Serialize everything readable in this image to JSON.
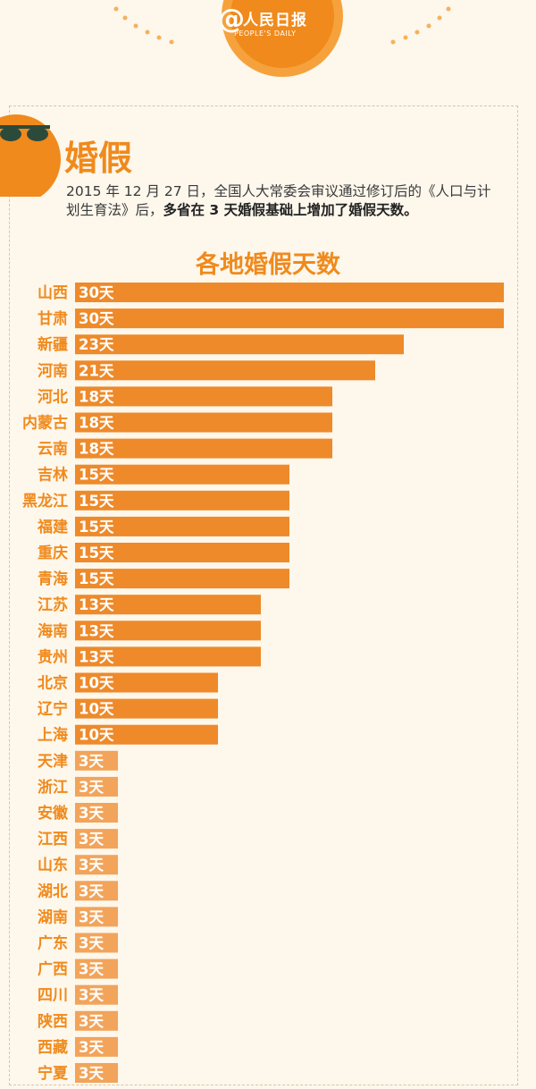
{
  "header": {
    "logo_at": "@",
    "logo_name": "人民日报",
    "logo_sub": "PEOPLE'S DAILY"
  },
  "section": {
    "title": "婚假",
    "intro_normal": "2015 年 12 月 27 日，全国人大常委会审议通过修订后的《人口与计划生育法》后，",
    "intro_bold": "多省在 3 天婚假基础上增加了婚假天数。"
  },
  "colors": {
    "bar_main": "#ee8a2a",
    "bar_light": "#f2a45a",
    "accent": "#f08a1c",
    "label": "#f08a1c"
  },
  "chart_data": {
    "type": "bar",
    "orientation": "horizontal",
    "title": "各地婚假天数",
    "unit_suffix": "天",
    "categories": [
      "山西",
      "甘肃",
      "新疆",
      "河南",
      "河北",
      "内蒙古",
      "云南",
      "吉林",
      "黑龙江",
      "福建",
      "重庆",
      "青海",
      "江苏",
      "海南",
      "贵州",
      "北京",
      "辽宁",
      "上海",
      "天津",
      "浙江",
      "安徽",
      "江西",
      "山东",
      "湖北",
      "湖南",
      "广东",
      "广西",
      "四川",
      "陕西",
      "西藏",
      "宁夏"
    ],
    "values": [
      30,
      30,
      23,
      21,
      18,
      18,
      18,
      15,
      15,
      15,
      15,
      15,
      13,
      13,
      13,
      10,
      10,
      10,
      3,
      3,
      3,
      3,
      3,
      3,
      3,
      3,
      3,
      3,
      3,
      3,
      3
    ],
    "labels": [
      "30天",
      "30天",
      "23天",
      "21天",
      "18天",
      "18天",
      "18天",
      "15天",
      "15天",
      "15天",
      "15天",
      "15天",
      "13天",
      "13天",
      "13天",
      "10天",
      "10天",
      "10天",
      "3天",
      "3天",
      "3天",
      "3天",
      "3天",
      "3天",
      "3天",
      "3天",
      "3天",
      "3天",
      "3天",
      "3天",
      "3天"
    ],
    "xlim": [
      0,
      30
    ],
    "grid": false,
    "legend": "none"
  }
}
